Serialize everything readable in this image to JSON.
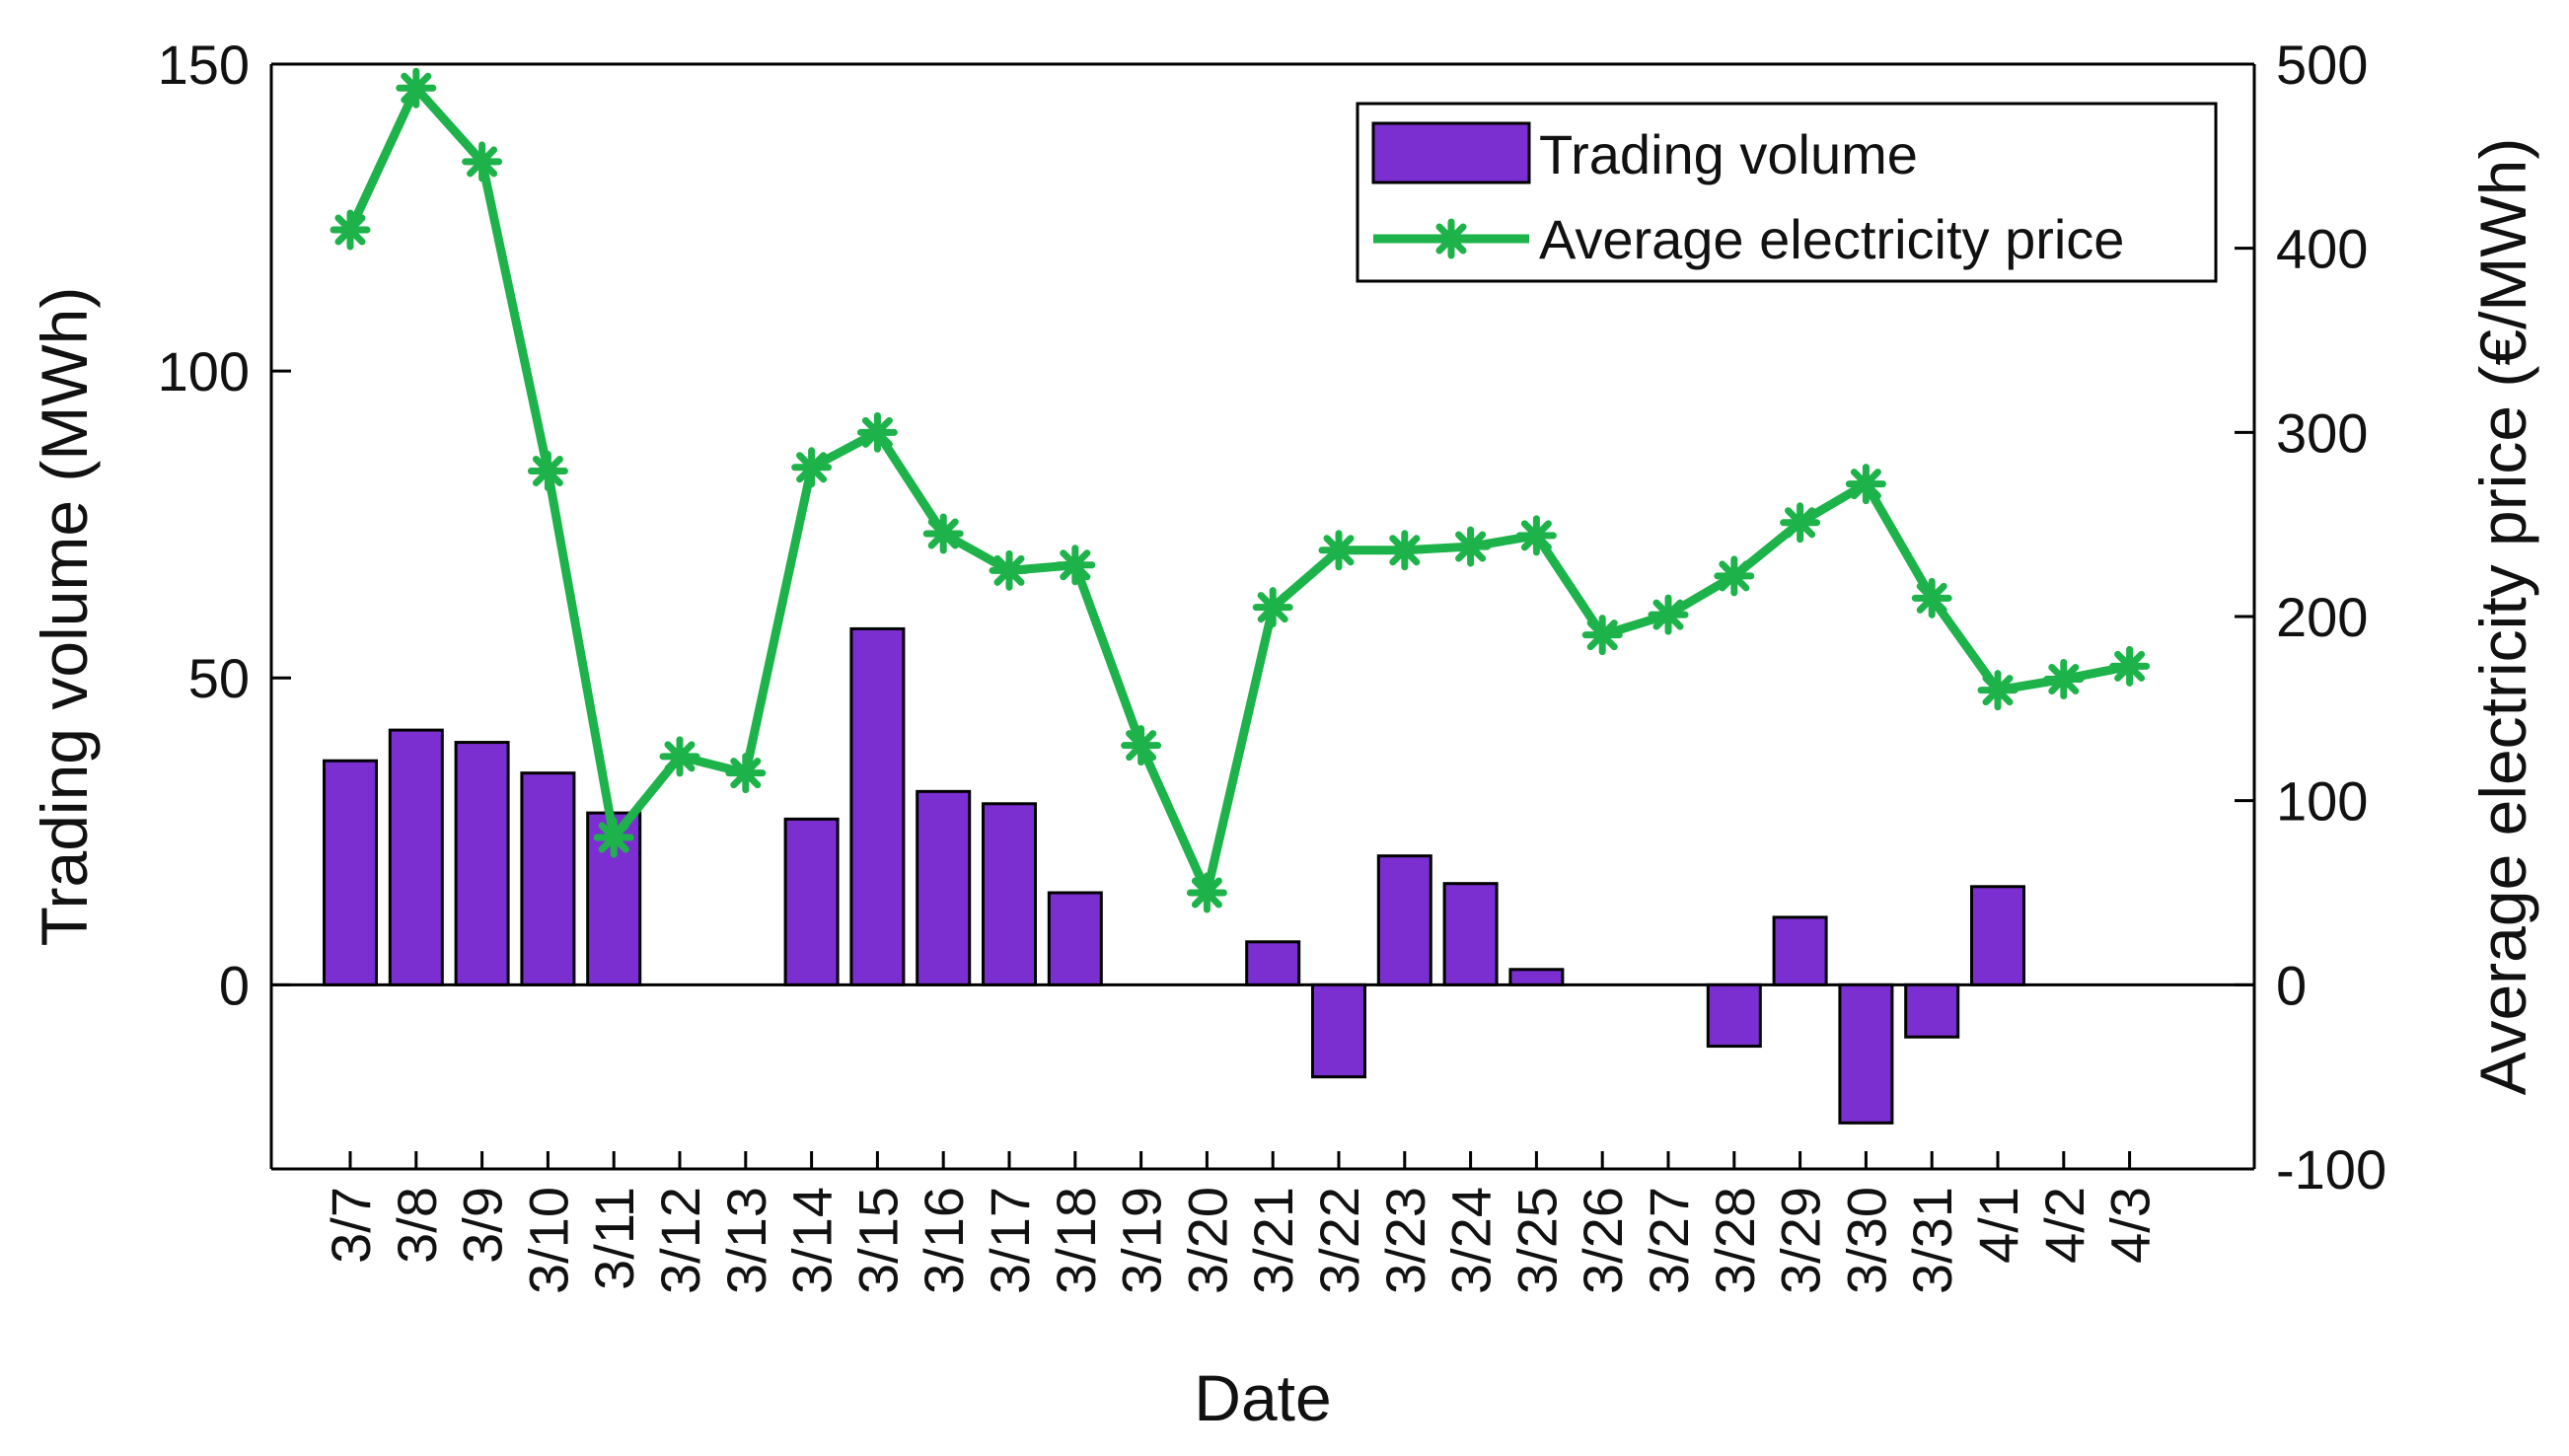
{
  "chart_data": {
    "type": "bar+line",
    "xlabel": "Date",
    "categories": [
      "3/7",
      "3/8",
      "3/9",
      "3/10",
      "3/11",
      "3/12",
      "3/13",
      "3/14",
      "3/15",
      "3/16",
      "3/17",
      "3/18",
      "3/19",
      "3/20",
      "3/21",
      "3/22",
      "3/23",
      "3/24",
      "3/25",
      "3/26",
      "3/27",
      "3/28",
      "3/29",
      "3/30",
      "3/31",
      "4/1",
      "4/2",
      "4/3"
    ],
    "series": [
      {
        "name": "Trading volume",
        "kind": "bar",
        "axis": "left",
        "color": "#7B2FD1",
        "values": [
          36.5,
          41.5,
          39.5,
          34.5,
          28,
          0,
          0,
          27,
          58,
          31.5,
          29.5,
          15,
          0,
          0,
          7,
          -15,
          21,
          16.5,
          2.5,
          0,
          0,
          -10,
          11,
          -22.5,
          -8.5,
          16,
          0,
          0
        ]
      },
      {
        "name": "Average electricity price",
        "kind": "line",
        "axis": "right",
        "color": "#1DB34A",
        "marker": "asterisk",
        "values": [
          410,
          487,
          447,
          279,
          80,
          124,
          115,
          281,
          300,
          245,
          225,
          228,
          130,
          50,
          205,
          236,
          236,
          238,
          244,
          190,
          201,
          222,
          251,
          272,
          210,
          160,
          166,
          173
        ]
      }
    ],
    "left_axis": {
      "label": "Trading volume (MWh)",
      "ylim": [
        -30,
        150
      ],
      "ticks": [
        0,
        50,
        100,
        150
      ]
    },
    "right_axis": {
      "label": "Average electricity price (€/MWh)",
      "ylim": [
        -100,
        500
      ],
      "ticks": [
        -100,
        0,
        100,
        200,
        300,
        400,
        500
      ]
    },
    "legend": {
      "position": "top-right",
      "entries": [
        "Trading volume",
        "Average electricity price"
      ]
    },
    "grid": false
  }
}
